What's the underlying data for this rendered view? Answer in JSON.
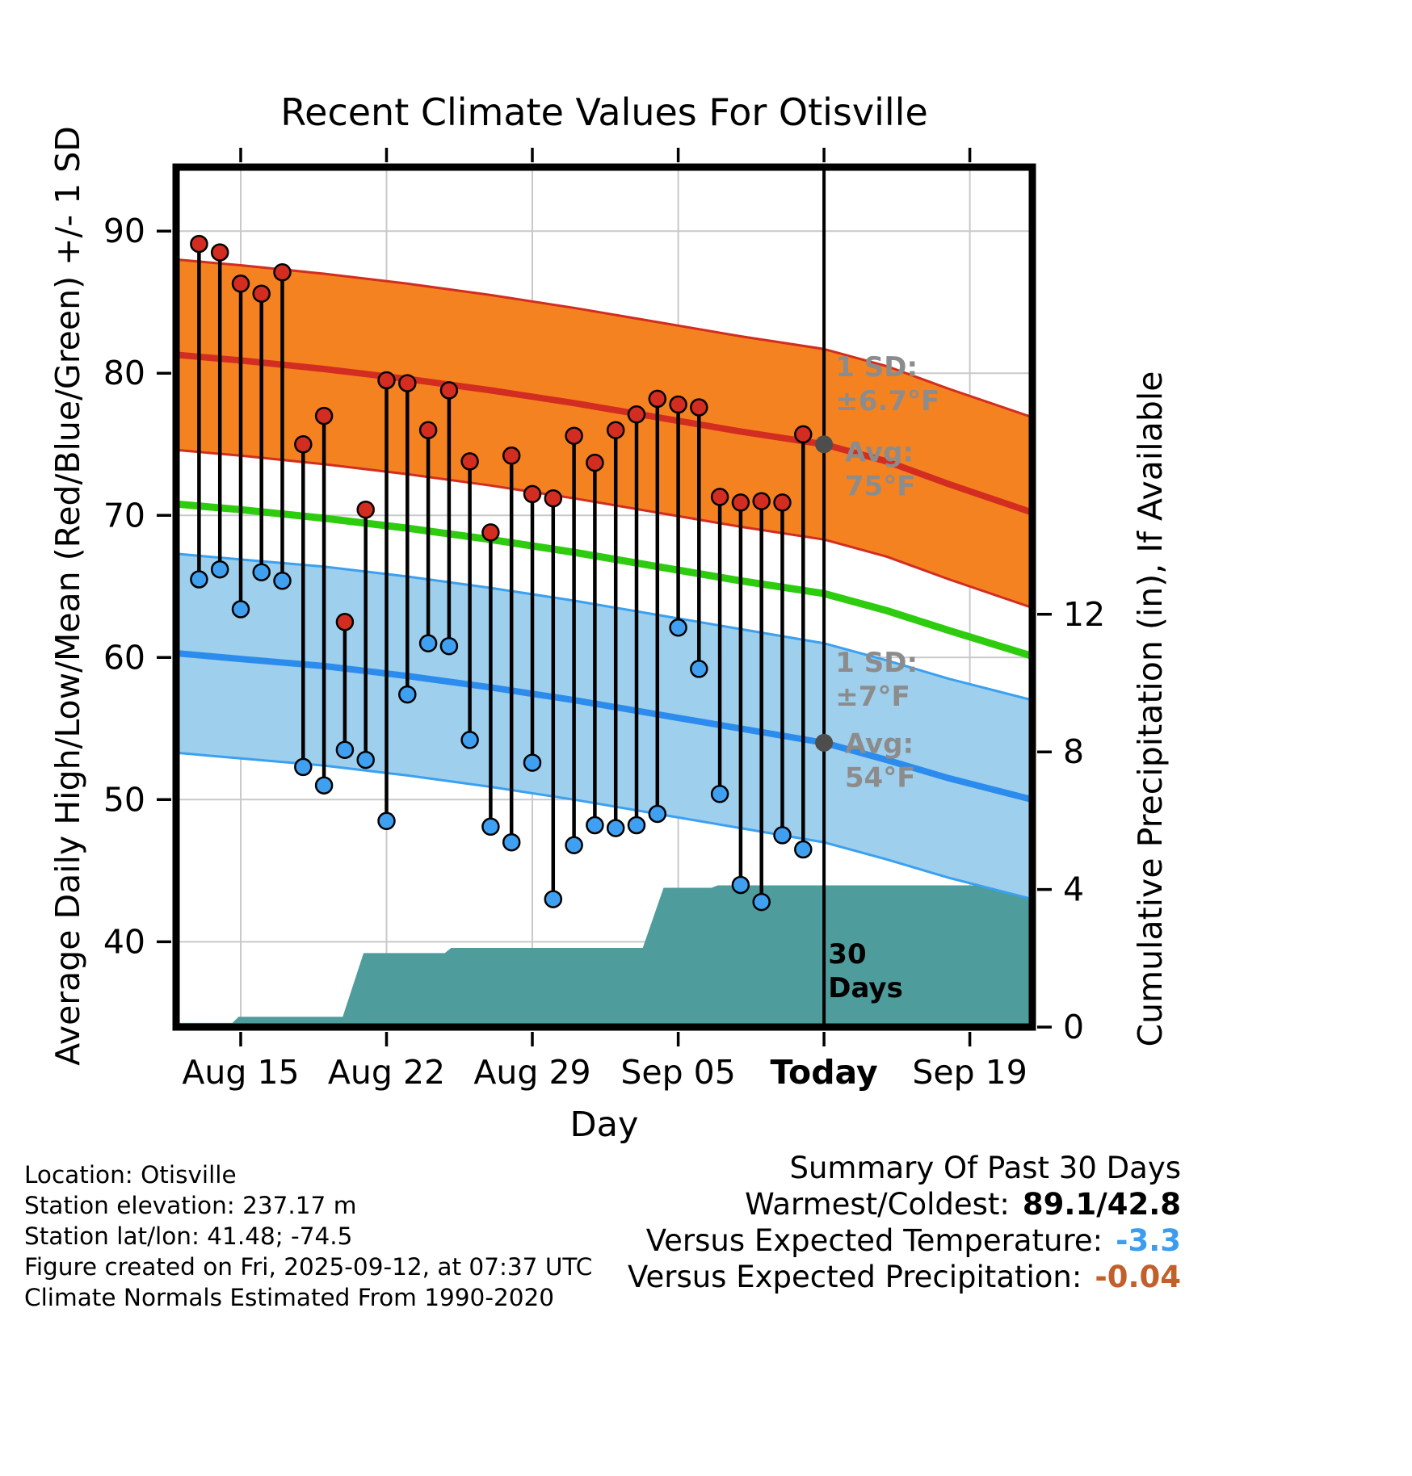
{
  "chart_data": {
    "type": "line",
    "title": "Recent Climate Values For Otisville",
    "xlabel": "Day",
    "ylabel_left": "Average Daily High/Low/Mean (Red/Blue/Green) +/- 1 SD",
    "ylabel_right": "Cumulative Precipitation (in), If Available",
    "x_domain_days": [
      -1.1,
      40.0
    ],
    "y_left_domain": [
      34.0,
      94.5
    ],
    "y_left_ticks": [
      40,
      50,
      60,
      70,
      80,
      90
    ],
    "y_right_domain_in": [
      0,
      25
    ],
    "y_right_ticks": [
      0,
      4,
      8,
      12
    ],
    "x_ticks": [
      {
        "day": 2,
        "label": "Aug 15",
        "bold": false
      },
      {
        "day": 9,
        "label": "Aug 22",
        "bold": false
      },
      {
        "day": 16,
        "label": "Aug 29",
        "bold": false
      },
      {
        "day": 23,
        "label": "Sep 05",
        "bold": false
      },
      {
        "day": 30,
        "label": "Today",
        "bold": true
      },
      {
        "day": 37,
        "label": "Sep 19",
        "bold": false
      }
    ],
    "today_day": 30,
    "normals": {
      "days": [
        -1.1,
        2,
        6,
        10,
        14,
        18,
        22,
        26,
        30,
        33,
        36,
        40
      ],
      "high_mean": [
        81.3,
        80.9,
        80.3,
        79.6,
        78.8,
        77.9,
        76.9,
        75.9,
        75.0,
        73.8,
        72.2,
        70.2
      ],
      "high_sd": 6.7,
      "mean": [
        70.8,
        70.4,
        69.8,
        69.1,
        68.3,
        67.4,
        66.4,
        65.4,
        64.5,
        63.3,
        61.9,
        60.1
      ],
      "low_mean": [
        60.3,
        59.9,
        59.4,
        58.7,
        57.9,
        57.0,
        56.0,
        55.0,
        54.0,
        52.8,
        51.5,
        50.0
      ],
      "low_sd": 7
    },
    "daily": {
      "start_day": 0,
      "dates": [
        "Aug 13",
        "Aug 14",
        "Aug 15",
        "Aug 16",
        "Aug 17",
        "Aug 18",
        "Aug 19",
        "Aug 20",
        "Aug 21",
        "Aug 22",
        "Aug 23",
        "Aug 24",
        "Aug 25",
        "Aug 26",
        "Aug 27",
        "Aug 28",
        "Aug 29",
        "Aug 30",
        "Aug 31",
        "Sep 01",
        "Sep 02",
        "Sep 03",
        "Sep 04",
        "Sep 05",
        "Sep 06",
        "Sep 07",
        "Sep 08",
        "Sep 09",
        "Sep 10",
        "Sep 11"
      ],
      "high": [
        89.1,
        88.5,
        86.3,
        85.6,
        87.1,
        75.0,
        77.0,
        62.5,
        70.4,
        79.5,
        79.3,
        76.0,
        78.8,
        73.8,
        68.8,
        74.2,
        71.5,
        71.2,
        75.6,
        73.7,
        76.0,
        77.1,
        78.2,
        77.8,
        77.6,
        71.3,
        70.9,
        71.0,
        70.9,
        75.7
      ],
      "low": [
        65.5,
        66.2,
        63.4,
        66.0,
        65.4,
        52.3,
        51.0,
        53.5,
        52.8,
        48.5,
        57.4,
        61.0,
        60.8,
        54.2,
        48.1,
        47.0,
        52.6,
        43.0,
        46.8,
        48.2,
        48.0,
        48.2,
        49.0,
        62.1,
        59.2,
        50.4,
        44.0,
        42.8,
        47.5,
        46.5
      ]
    },
    "precip_steps": [
      [
        -1.1,
        0.12
      ],
      [
        1.6,
        0.12
      ],
      [
        1.9,
        0.3
      ],
      [
        6.9,
        0.3
      ],
      [
        7.9,
        2.15
      ],
      [
        11.8,
        2.15
      ],
      [
        12.1,
        2.3
      ],
      [
        21.3,
        2.3
      ],
      [
        22.3,
        4.05
      ],
      [
        24.6,
        4.05
      ],
      [
        24.9,
        4.12
      ],
      [
        40,
        4.12
      ]
    ],
    "avg_markers": [
      {
        "day": 30,
        "value": 75
      },
      {
        "day": 30,
        "value": 54
      }
    ],
    "annotations": [
      {
        "lines": [
          "1 SD:",
          "±6.7°F"
        ],
        "day": 30.55,
        "temp": 79.8,
        "color": "#8c8c8c"
      },
      {
        "lines": [
          "Avg:",
          "75°F"
        ],
        "day": 31.0,
        "temp": 73.8,
        "color": "#8c8c8c"
      },
      {
        "lines": [
          "1 SD:",
          "±7°F"
        ],
        "day": 30.55,
        "temp": 59.0,
        "color": "#8c8c8c"
      },
      {
        "lines": [
          "Avg:",
          "54°F"
        ],
        "day": 31.0,
        "temp": 53.3,
        "color": "#8c8c8c"
      },
      {
        "lines": [
          "30",
          "Days"
        ],
        "day": 30.2,
        "temp": 38.5,
        "color": "#000000"
      }
    ],
    "colors": {
      "grid": "#c9c9c9",
      "high_band": "#f58220",
      "high_line": "#d22d20",
      "high_dot": "#d22d20",
      "mean_line": "#2ecc0e",
      "low_band": "#9ecfec",
      "low_edge": "#3aa0f0",
      "low_line": "#2b8cee",
      "low_dot": "#3fa0f2",
      "precip": "#4f9c9c",
      "avg_dot": "#4d4d4d",
      "stem": "#000000",
      "border": "#000000"
    }
  },
  "footer": {
    "lines": [
      "Location: Otisville",
      "Station elevation: 237.17 m",
      "Station lat/lon: 41.48; -74.5",
      "Figure created on Fri, 2025-09-12, at 07:37 UTC",
      "Climate Normals Estimated From 1990-2020"
    ]
  },
  "summary": {
    "title": "Summary Of Past 30 Days",
    "rows": [
      {
        "label": "Warmest/Coldest:",
        "value": "89.1/42.8",
        "value_color": "#000000"
      },
      {
        "label": "Versus Expected Temperature:",
        "value": "-3.3",
        "value_color": "#3b9df0"
      },
      {
        "label": "Versus Expected Precipitation:",
        "value": "-0.04",
        "value_color": "#c2602b"
      }
    ]
  }
}
